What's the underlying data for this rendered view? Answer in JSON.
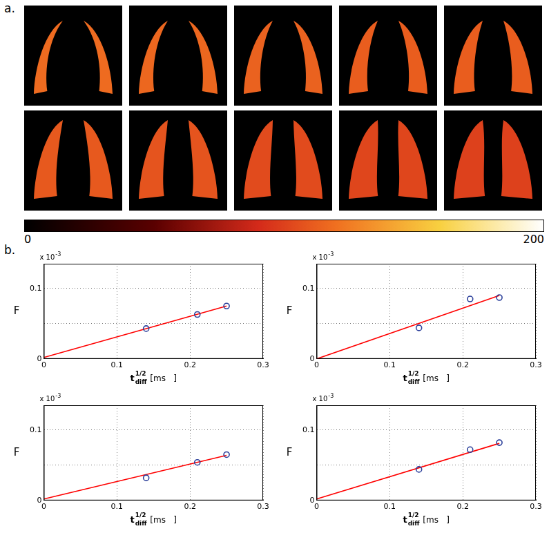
{
  "maps": {
    "label": "a.",
    "type": "heatmap",
    "images": [
      {
        "value": 118
      },
      {
        "value": 116
      },
      {
        "value": 114
      },
      {
        "value": 112
      },
      {
        "value": 112
      },
      {
        "value": 110
      },
      {
        "value": 108
      },
      {
        "value": 104
      },
      {
        "value": 102
      },
      {
        "value": 100
      }
    ],
    "colorbar": {
      "range": [
        0,
        200
      ],
      "ticks": [
        0,
        200
      ]
    }
  },
  "charts_label": "b.",
  "chart_data": [
    {
      "type": "scatter",
      "x_label": {
        "text": "t",
        "sub": "diff",
        "sup": "1/2",
        "unit": "[ms   ]"
      },
      "y_label": "F",
      "y_multiplier": {
        "text": "x 10",
        "sup": "-3"
      },
      "xlim": [
        0,
        0.3
      ],
      "xticks": [
        0,
        0.1,
        0.2,
        0.3
      ],
      "ylim": [
        0,
        0.135
      ],
      "yticks": [
        0,
        {
          "value": 0.05,
          "label": null
        },
        0.1
      ],
      "grid": true,
      "series": [
        {
          "type": "scatter",
          "marker": "circle",
          "color": "#2b3f9a",
          "x": [
            0.14,
            0.21,
            0.25
          ],
          "values": [
            0.043,
            0.063,
            0.075
          ]
        },
        {
          "type": "line",
          "line_style": "solid",
          "color": "#ff0000",
          "x": [
            0,
            0.25
          ],
          "values": [
            0.002,
            0.075
          ]
        }
      ]
    },
    {
      "type": "scatter",
      "x_label": {
        "text": "t",
        "sub": "diff",
        "sup": "1/2",
        "unit": "[ms   ]"
      },
      "y_label": "F",
      "y_multiplier": {
        "text": "x 10",
        "sup": "-3"
      },
      "xlim": [
        0,
        0.3
      ],
      "xticks": [
        0,
        0.1,
        0.2,
        0.3
      ],
      "ylim": [
        0,
        0.135
      ],
      "yticks": [
        0,
        {
          "value": 0.05,
          "label": null
        },
        0.1
      ],
      "grid": true,
      "series": [
        {
          "type": "scatter",
          "marker": "circle",
          "color": "#2b3f9a",
          "x": [
            0.14,
            0.21,
            0.25
          ],
          "values": [
            0.044,
            0.085,
            0.087
          ]
        },
        {
          "type": "line",
          "line_style": "solid",
          "color": "#ff0000",
          "x": [
            0,
            0.25
          ],
          "values": [
            0.0,
            0.09
          ]
        }
      ]
    },
    {
      "type": "scatter",
      "x_label": {
        "text": "t",
        "sub": "diff",
        "sup": "1/2",
        "unit": "[ms   ]"
      },
      "y_label": "F",
      "y_multiplier": {
        "text": "x 10",
        "sup": "-3"
      },
      "xlim": [
        0,
        0.3
      ],
      "xticks": [
        0,
        0.1,
        0.2,
        0.3
      ],
      "ylim": [
        0,
        0.135
      ],
      "yticks": [
        0,
        {
          "value": 0.05,
          "label": null
        },
        0.1
      ],
      "grid": true,
      "series": [
        {
          "type": "scatter",
          "marker": "circle",
          "color": "#2b3f9a",
          "x": [
            0.14,
            0.21,
            0.25
          ],
          "values": [
            0.032,
            0.054,
            0.065
          ]
        },
        {
          "type": "line",
          "line_style": "solid",
          "color": "#ff0000",
          "x": [
            0,
            0.25
          ],
          "values": [
            0.002,
            0.064
          ]
        }
      ]
    },
    {
      "type": "scatter",
      "x_label": {
        "text": "t",
        "sub": "diff",
        "sup": "1/2",
        "unit": "[ms   ]"
      },
      "y_label": "F",
      "y_multiplier": {
        "text": "x 10",
        "sup": "-3"
      },
      "xlim": [
        0,
        0.3
      ],
      "xticks": [
        0,
        0.1,
        0.2,
        0.3
      ],
      "ylim": [
        0,
        0.135
      ],
      "yticks": [
        0,
        {
          "value": 0.05,
          "label": null
        },
        0.1
      ],
      "grid": true,
      "series": [
        {
          "type": "scatter",
          "marker": "circle",
          "color": "#2b3f9a",
          "x": [
            0.14,
            0.21,
            0.25
          ],
          "values": [
            0.044,
            0.072,
            0.082
          ]
        },
        {
          "type": "line",
          "line_style": "solid",
          "color": "#ff0000",
          "x": [
            0,
            0.25
          ],
          "values": [
            0.002,
            0.081
          ]
        }
      ]
    }
  ]
}
